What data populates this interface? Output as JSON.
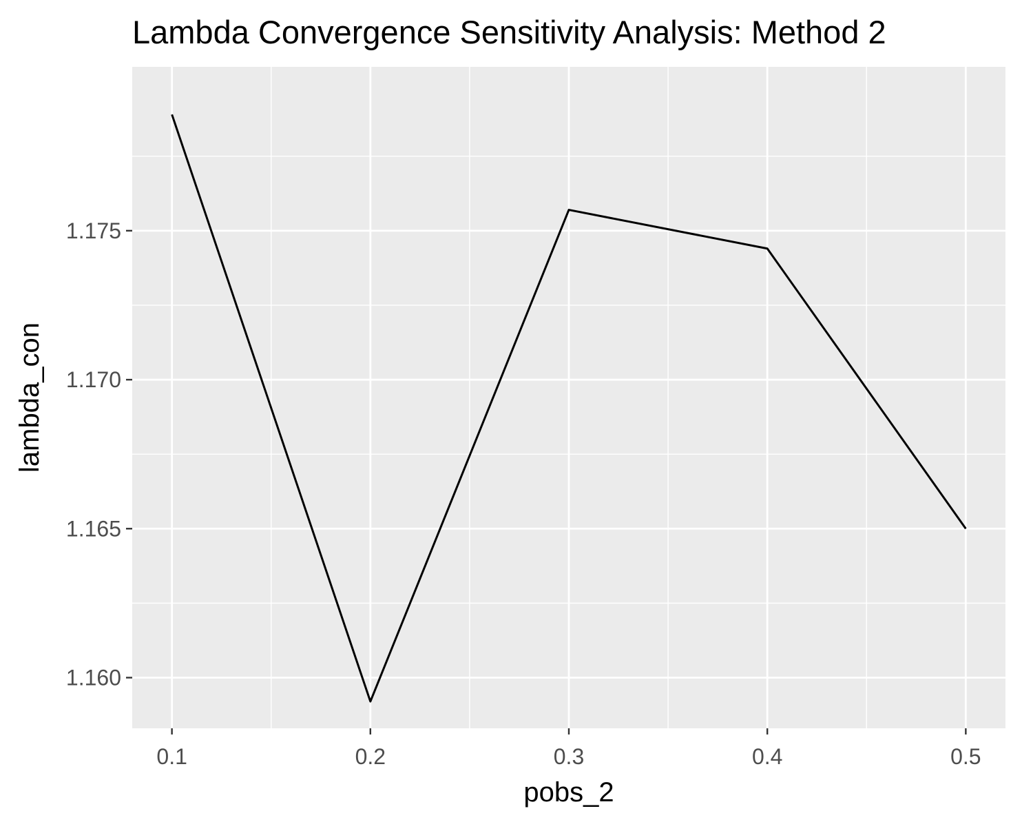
{
  "chart_data": {
    "type": "line",
    "title": "Lambda Convergence Sensitivity Analysis: Method 2",
    "xlabel": "pobs_2",
    "ylabel": "lambda_con",
    "x": [
      0.1,
      0.2,
      0.3,
      0.4,
      0.5
    ],
    "series": [
      {
        "values": [
          1.1789,
          1.1592,
          1.1757,
          1.1744,
          1.165
        ]
      }
    ],
    "xlim": [
      0.08,
      0.52
    ],
    "ylim": [
      1.1583,
      1.1805
    ],
    "x_ticks": [
      0.1,
      0.2,
      0.3,
      0.4,
      0.5
    ],
    "x_tick_labels": [
      "0.1",
      "0.2",
      "0.3",
      "0.4",
      "0.5"
    ],
    "y_ticks": [
      1.16,
      1.165,
      1.17,
      1.175
    ],
    "y_tick_labels": [
      "1.160",
      "1.165",
      "1.170",
      "1.175"
    ],
    "grid": true,
    "legend": "none",
    "colors": {
      "panel_background": "#ebebeb",
      "grid": "#ffffff",
      "line": "#000000",
      "tick": "#333333"
    }
  }
}
